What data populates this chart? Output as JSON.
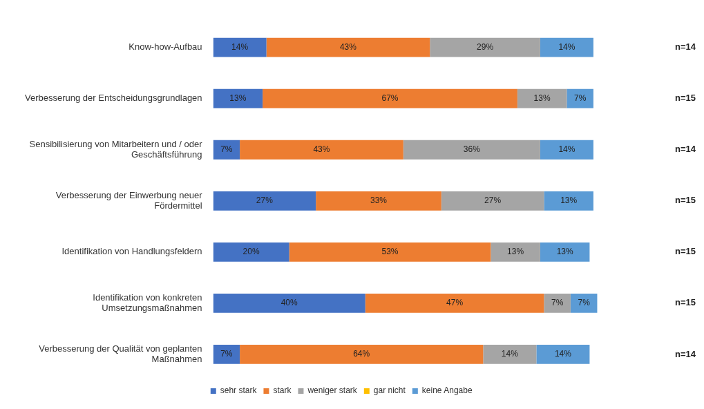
{
  "chart_data": {
    "type": "bar",
    "orientation": "horizontal",
    "stacked": true,
    "legend": "bottom",
    "grid": false,
    "categories": [
      "Know-how-Aufbau",
      "Verbesserung der Entscheidungsgrundlagen",
      "Sensibilisierung von Mitarbeitern und / oder Geschäftsführung",
      "Verbesserung der Einwerbung neuer Fördermittel",
      "Identifikation von Handlungsfeldern",
      "Identifikation von konkreten Umsetzungsmaßnahmen",
      "Verbesserung der Qualität von geplanten Maßnahmen"
    ],
    "series": [
      {
        "name": "sehr stark",
        "color": "#4472c4",
        "values": [
          14,
          13,
          7,
          27,
          20,
          40,
          7
        ],
        "value_labels": [
          "14%",
          "13%",
          "7%",
          "27%",
          "20%",
          "40%",
          "7%"
        ]
      },
      {
        "name": "stark",
        "color": "#ed7d31",
        "values": [
          43,
          67,
          43,
          33,
          53,
          47,
          64
        ],
        "value_labels": [
          "43%",
          "67%",
          "43%",
          "33%",
          "53%",
          "47%",
          "64%"
        ]
      },
      {
        "name": "weniger stark",
        "color": "#a5a5a5",
        "values": [
          29,
          13,
          36,
          27,
          13,
          7,
          14
        ],
        "value_labels": [
          "29%",
          "13%",
          "36%",
          "27%",
          "13%",
          "7%",
          "14%"
        ]
      },
      {
        "name": "gar nicht",
        "color": "#ffc000",
        "values": [
          0,
          0,
          0,
          0,
          0,
          0,
          0
        ],
        "value_labels": [
          null,
          null,
          null,
          null,
          null,
          null,
          null
        ]
      },
      {
        "name": "keine Angabe",
        "color": "#5b9bd5",
        "values": [
          14,
          7,
          14,
          13,
          13,
          7,
          14
        ],
        "value_labels": [
          "14%",
          "7%",
          "14%",
          "13%",
          "13%",
          "7%",
          "14%"
        ]
      }
    ],
    "annotations": [
      "n=14",
      "n=15",
      "n=14",
      "n=15",
      "n=15",
      "n=15",
      "n=14"
    ]
  }
}
